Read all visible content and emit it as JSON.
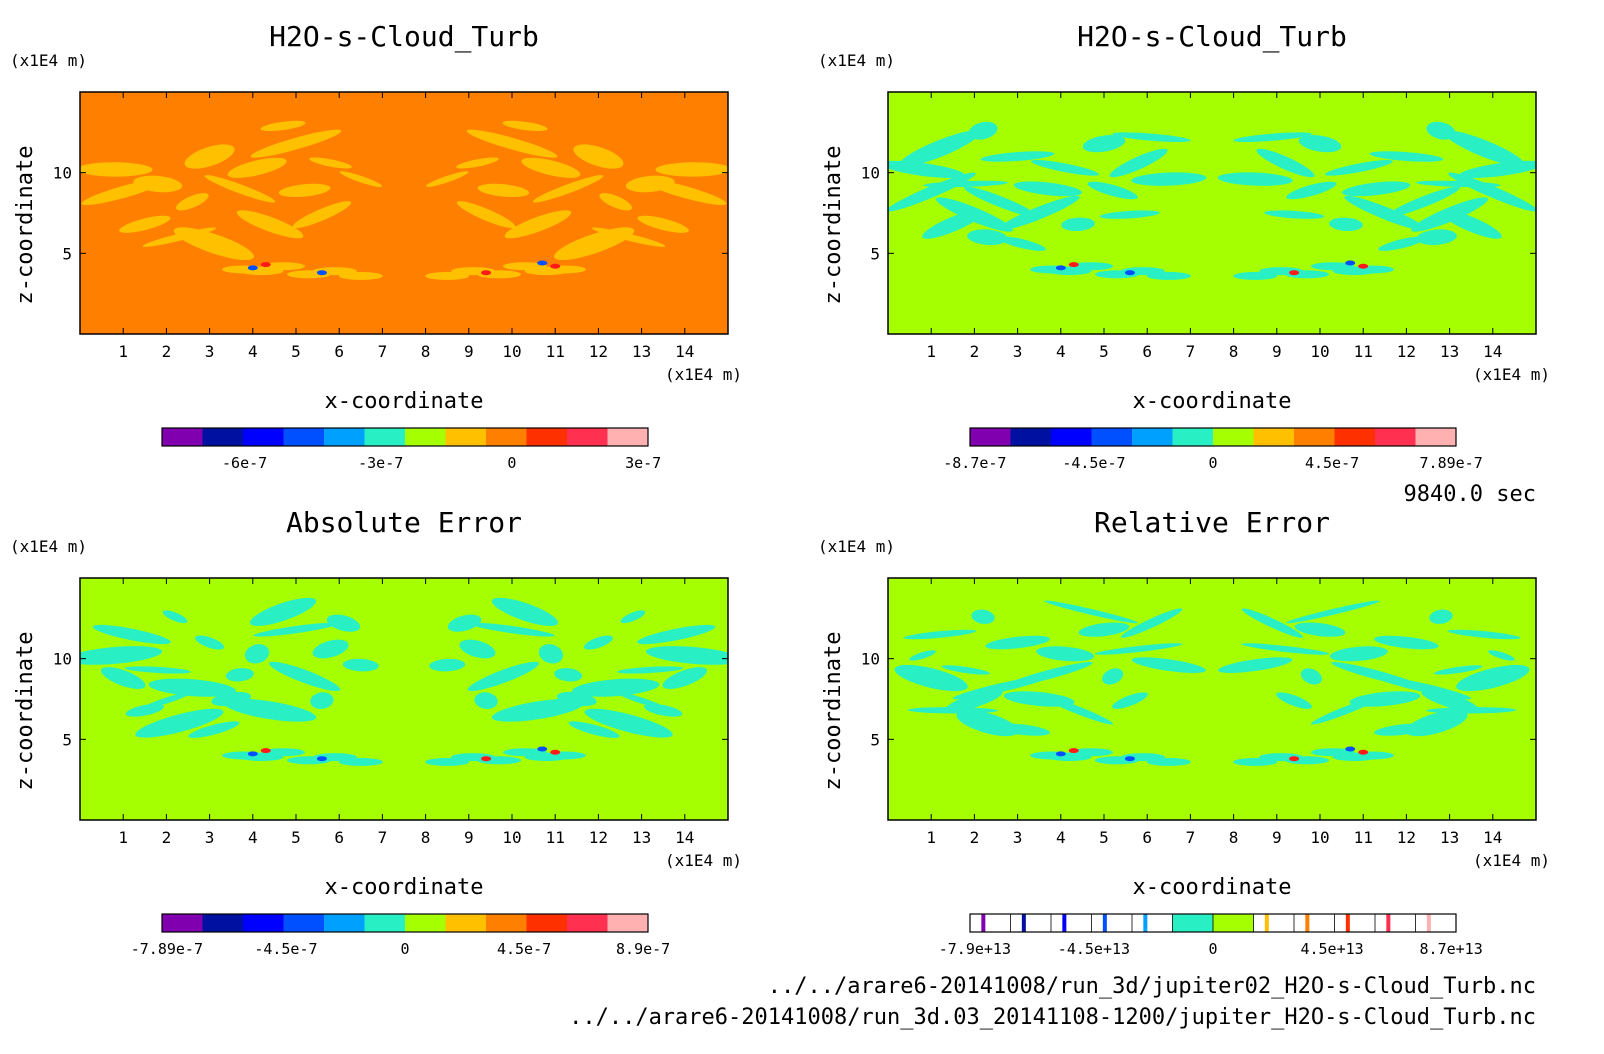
{
  "time_label": "9840.0 sec",
  "file_paths": [
    "../../arare6-20141008/run_3d/jupiter02_H2O-s-Cloud_Turb.nc",
    "../../arare6-20141008/run_3d.03_20141108-1200/jupiter_H2O-s-Cloud_Turb.nc"
  ],
  "colors": {
    "orange_bg": "#ff8000",
    "green_bg": "#a6ff00",
    "yellow_patch": "#ffc000",
    "cyan_patch": "#29f0c4",
    "blue": "#0050ff",
    "red": "#ff1a1a"
  },
  "chart_data": [
    {
      "type": "heatmap",
      "title": "H2O-s-Cloud_Turb",
      "xlabel": "x-coordinate",
      "ylabel": "z-coordinate",
      "x_unit": "(x1E4 m)",
      "y_unit": "(x1E4 m)",
      "x_range": [
        0,
        15
      ],
      "y_range": [
        0,
        15
      ],
      "x_ticks": [
        "1",
        "2",
        "3",
        "4",
        "5",
        "6",
        "7",
        "8",
        "9",
        "10",
        "11",
        "12",
        "13",
        "14"
      ],
      "y_ticks": [
        "5",
        "10"
      ],
      "colorbar": {
        "colors": [
          "#8000b0",
          "#0010a0",
          "#0000ff",
          "#0050ff",
          "#00a0ff",
          "#29f0c4",
          "#a6ff00",
          "#ffc000",
          "#ff8000",
          "#ff3000",
          "#ff3050",
          "#ffb0b0"
        ],
        "tick_labels": [
          "-6e-7",
          "-3e-7",
          "0",
          "3e-7"
        ]
      }
    },
    {
      "type": "heatmap",
      "title": "H2O-s-Cloud_Turb",
      "xlabel": "x-coordinate",
      "ylabel": "z-coordinate",
      "x_unit": "(x1E4 m)",
      "y_unit": "(x1E4 m)",
      "x_range": [
        0,
        15
      ],
      "y_range": [
        0,
        15
      ],
      "x_ticks": [
        "1",
        "2",
        "3",
        "4",
        "5",
        "6",
        "7",
        "8",
        "9",
        "10",
        "11",
        "12",
        "13",
        "14"
      ],
      "y_ticks": [
        "5",
        "10"
      ],
      "colorbar": {
        "colors": [
          "#8000b0",
          "#0010a0",
          "#0000ff",
          "#0050ff",
          "#00a0ff",
          "#29f0c4",
          "#a6ff00",
          "#ffc000",
          "#ff8000",
          "#ff3000",
          "#ff3050",
          "#ffb0b0"
        ],
        "tick_labels": [
          "-8.7e-7",
          "-4.5e-7",
          "0",
          "4.5e-7",
          "7.89e-7"
        ]
      }
    },
    {
      "type": "heatmap",
      "title": "Absolute Error",
      "xlabel": "x-coordinate",
      "ylabel": "z-coordinate",
      "x_unit": "(x1E4 m)",
      "y_unit": "(x1E4 m)",
      "x_range": [
        0,
        15
      ],
      "y_range": [
        0,
        15
      ],
      "x_ticks": [
        "1",
        "2",
        "3",
        "4",
        "5",
        "6",
        "7",
        "8",
        "9",
        "10",
        "11",
        "12",
        "13",
        "14"
      ],
      "y_ticks": [
        "5",
        "10"
      ],
      "colorbar": {
        "colors": [
          "#8000b0",
          "#0010a0",
          "#0000ff",
          "#0050ff",
          "#00a0ff",
          "#29f0c4",
          "#a6ff00",
          "#ffc000",
          "#ff8000",
          "#ff3000",
          "#ff3050",
          "#ffb0b0"
        ],
        "tick_labels": [
          "-7.89e-7",
          "-4.5e-7",
          "0",
          "4.5e-7",
          "8.9e-7"
        ]
      }
    },
    {
      "type": "heatmap",
      "title": "Relative Error",
      "xlabel": "x-coordinate",
      "ylabel": "z-coordinate",
      "x_unit": "(x1E4 m)",
      "y_unit": "(x1E4 m)",
      "x_range": [
        0,
        15
      ],
      "y_range": [
        0,
        15
      ],
      "x_ticks": [
        "1",
        "2",
        "3",
        "4",
        "5",
        "6",
        "7",
        "8",
        "9",
        "10",
        "11",
        "12",
        "13",
        "14"
      ],
      "y_ticks": [
        "5",
        "10"
      ],
      "colorbar": {
        "colors": [
          "#8000b0",
          "#0010a0",
          "#0000ff",
          "#0050ff",
          "#00a0ff",
          "#29f0c4",
          "#a6ff00",
          "#ffc000",
          "#ff8000",
          "#ff3000",
          "#ff3050",
          "#ffb0b0"
        ],
        "tick_labels": [
          "-7.9e+13",
          "-4.5e+13",
          "0",
          "4.5e+13",
          "8.7e+13"
        ]
      }
    }
  ]
}
